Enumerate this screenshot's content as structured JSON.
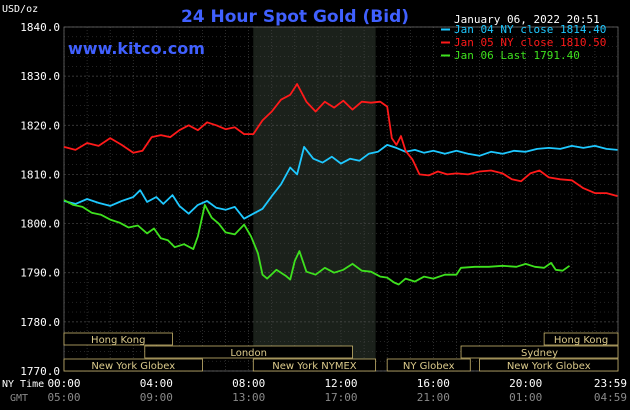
{
  "chart_data": {
    "type": "line",
    "title": "24 Hour Spot Gold (Bid)",
    "website": "www.kitco.com",
    "timestamp": "January 06, 2022 20:51",
    "y_unit_label": "USD/oz",
    "ylim": [
      1770,
      1840
    ],
    "y_ticks": [
      "1840.0",
      "1830.0",
      "1820.0",
      "1810.0",
      "1800.0",
      "1790.0",
      "1780.0",
      "1770.0"
    ],
    "y_tick_values": [
      1840,
      1830,
      1820,
      1810,
      1800,
      1790,
      1780,
      1770
    ],
    "xlim": [
      0,
      24
    ],
    "x_tick_hours": [
      0,
      4,
      8,
      12,
      16,
      20,
      23.98
    ],
    "x_label_nytime": "NY Time",
    "x_label_gmt": "GMT",
    "x_ticks_nytime": [
      "00:00",
      "04:00",
      "08:00",
      "12:00",
      "16:00",
      "20:00",
      "23:59"
    ],
    "x_ticks_gmt": [
      "05:00",
      "09:00",
      "13:00",
      "17:00",
      "21:00",
      "01:00",
      "04:59"
    ],
    "shaded_region_hours": [
      8.2,
      13.5
    ],
    "grid": true,
    "legend_position": "top-right",
    "series": [
      {
        "name": "Jan 04 NY close 1814.40",
        "color": "#1ec8ff",
        "points": [
          [
            0,
            1804.6
          ],
          [
            0.5,
            1804.0
          ],
          [
            1.0,
            1805.0
          ],
          [
            1.5,
            1804.2
          ],
          [
            2.0,
            1803.6
          ],
          [
            2.5,
            1804.6
          ],
          [
            3.0,
            1805.4
          ],
          [
            3.3,
            1806.8
          ],
          [
            3.6,
            1804.4
          ],
          [
            4.0,
            1805.4
          ],
          [
            4.3,
            1804.0
          ],
          [
            4.7,
            1805.8
          ],
          [
            5.0,
            1803.6
          ],
          [
            5.4,
            1802.0
          ],
          [
            5.8,
            1803.8
          ],
          [
            6.2,
            1804.6
          ],
          [
            6.6,
            1803.2
          ],
          [
            7.0,
            1802.8
          ],
          [
            7.4,
            1803.4
          ],
          [
            7.8,
            1801.0
          ],
          [
            8.2,
            1802.0
          ],
          [
            8.6,
            1803.0
          ],
          [
            9.0,
            1805.6
          ],
          [
            9.4,
            1808.0
          ],
          [
            9.8,
            1811.4
          ],
          [
            10.1,
            1810.0
          ],
          [
            10.4,
            1815.6
          ],
          [
            10.8,
            1813.2
          ],
          [
            11.2,
            1812.4
          ],
          [
            11.6,
            1813.6
          ],
          [
            12.0,
            1812.2
          ],
          [
            12.4,
            1813.2
          ],
          [
            12.8,
            1812.8
          ],
          [
            13.2,
            1814.2
          ],
          [
            13.6,
            1814.6
          ],
          [
            14.0,
            1816.0
          ],
          [
            14.4,
            1815.4
          ],
          [
            14.8,
            1814.6
          ],
          [
            15.2,
            1815.0
          ],
          [
            15.6,
            1814.4
          ],
          [
            16.0,
            1814.8
          ],
          [
            16.5,
            1814.2
          ],
          [
            17.0,
            1814.8
          ],
          [
            17.5,
            1814.2
          ],
          [
            18.0,
            1813.8
          ],
          [
            18.5,
            1814.6
          ],
          [
            19.0,
            1814.2
          ],
          [
            19.5,
            1814.8
          ],
          [
            20.0,
            1814.6
          ],
          [
            20.5,
            1815.2
          ],
          [
            21.0,
            1815.4
          ],
          [
            21.5,
            1815.2
          ],
          [
            22.0,
            1815.8
          ],
          [
            22.5,
            1815.4
          ],
          [
            23.0,
            1815.8
          ],
          [
            23.5,
            1815.2
          ],
          [
            23.98,
            1815.0
          ]
        ]
      },
      {
        "name": "Jan 05 NY close 1810.50",
        "color": "#ff1a1a",
        "points": [
          [
            0,
            1815.6
          ],
          [
            0.5,
            1815.0
          ],
          [
            1.0,
            1816.4
          ],
          [
            1.5,
            1815.8
          ],
          [
            2.0,
            1817.4
          ],
          [
            2.5,
            1816.0
          ],
          [
            3.0,
            1814.4
          ],
          [
            3.4,
            1814.8
          ],
          [
            3.8,
            1817.6
          ],
          [
            4.2,
            1818.0
          ],
          [
            4.6,
            1817.6
          ],
          [
            5.0,
            1819.0
          ],
          [
            5.4,
            1820.0
          ],
          [
            5.8,
            1819.0
          ],
          [
            6.2,
            1820.6
          ],
          [
            6.6,
            1820.0
          ],
          [
            7.0,
            1819.2
          ],
          [
            7.4,
            1819.6
          ],
          [
            7.8,
            1818.2
          ],
          [
            8.2,
            1818.2
          ],
          [
            8.6,
            1821.0
          ],
          [
            9.0,
            1822.8
          ],
          [
            9.4,
            1825.2
          ],
          [
            9.8,
            1826.2
          ],
          [
            10.1,
            1828.4
          ],
          [
            10.5,
            1824.8
          ],
          [
            10.9,
            1822.8
          ],
          [
            11.3,
            1824.8
          ],
          [
            11.7,
            1823.6
          ],
          [
            12.1,
            1825.0
          ],
          [
            12.5,
            1823.2
          ],
          [
            12.9,
            1824.8
          ],
          [
            13.3,
            1824.6
          ],
          [
            13.7,
            1824.8
          ],
          [
            14.0,
            1823.8
          ],
          [
            14.2,
            1817.4
          ],
          [
            14.4,
            1816.0
          ],
          [
            14.6,
            1817.8
          ],
          [
            14.8,
            1814.8
          ],
          [
            15.1,
            1813.0
          ],
          [
            15.4,
            1810.0
          ],
          [
            15.8,
            1809.8
          ],
          [
            16.2,
            1810.6
          ],
          [
            16.6,
            1810.0
          ],
          [
            17.0,
            1810.2
          ],
          [
            17.5,
            1810.0
          ],
          [
            18.0,
            1810.6
          ],
          [
            18.5,
            1810.8
          ],
          [
            19.0,
            1810.2
          ],
          [
            19.4,
            1809.0
          ],
          [
            19.8,
            1808.6
          ],
          [
            20.2,
            1810.2
          ],
          [
            20.6,
            1810.8
          ],
          [
            21.0,
            1809.4
          ],
          [
            21.5,
            1809.0
          ],
          [
            22.0,
            1808.8
          ],
          [
            22.5,
            1807.2
          ],
          [
            23.0,
            1806.2
          ],
          [
            23.5,
            1806.2
          ],
          [
            23.98,
            1805.6
          ]
        ]
      },
      {
        "name": "Jan 06 Last 1791.40",
        "color": "#3ee11e",
        "points": [
          [
            0,
            1804.8
          ],
          [
            0.4,
            1803.8
          ],
          [
            0.8,
            1803.4
          ],
          [
            1.2,
            1802.2
          ],
          [
            1.6,
            1801.8
          ],
          [
            2.0,
            1800.8
          ],
          [
            2.4,
            1800.2
          ],
          [
            2.8,
            1799.2
          ],
          [
            3.2,
            1799.6
          ],
          [
            3.6,
            1798.0
          ],
          [
            3.9,
            1799.0
          ],
          [
            4.2,
            1797.0
          ],
          [
            4.5,
            1796.6
          ],
          [
            4.8,
            1795.2
          ],
          [
            5.2,
            1795.8
          ],
          [
            5.6,
            1794.8
          ],
          [
            5.8,
            1797.4
          ],
          [
            6.1,
            1803.8
          ],
          [
            6.4,
            1801.2
          ],
          [
            6.7,
            1800.0
          ],
          [
            7.0,
            1798.2
          ],
          [
            7.4,
            1797.8
          ],
          [
            7.8,
            1799.8
          ],
          [
            8.1,
            1797.4
          ],
          [
            8.4,
            1794.0
          ],
          [
            8.6,
            1789.6
          ],
          [
            8.8,
            1788.8
          ],
          [
            9.2,
            1790.6
          ],
          [
            9.6,
            1789.4
          ],
          [
            9.8,
            1788.6
          ],
          [
            10.0,
            1792.4
          ],
          [
            10.2,
            1794.4
          ],
          [
            10.5,
            1790.2
          ],
          [
            10.9,
            1789.6
          ],
          [
            11.3,
            1791.0
          ],
          [
            11.7,
            1790.0
          ],
          [
            12.1,
            1790.6
          ],
          [
            12.5,
            1791.8
          ],
          [
            12.9,
            1790.4
          ],
          [
            13.3,
            1790.2
          ],
          [
            13.7,
            1789.2
          ],
          [
            14.0,
            1789.0
          ],
          [
            14.3,
            1788.0
          ],
          [
            14.5,
            1787.6
          ],
          [
            14.8,
            1788.8
          ],
          [
            15.2,
            1788.2
          ],
          [
            15.6,
            1789.2
          ],
          [
            16.0,
            1788.8
          ],
          [
            16.5,
            1789.6
          ],
          [
            17.0,
            1789.6
          ],
          [
            17.2,
            1791.0
          ],
          [
            17.8,
            1791.2
          ],
          [
            18.4,
            1791.2
          ],
          [
            19.0,
            1791.4
          ],
          [
            19.6,
            1791.2
          ],
          [
            20.0,
            1791.8
          ],
          [
            20.4,
            1791.2
          ],
          [
            20.8,
            1791.0
          ],
          [
            21.1,
            1792.0
          ],
          [
            21.3,
            1790.6
          ],
          [
            21.6,
            1790.4
          ],
          [
            21.9,
            1791.4
          ]
        ]
      }
    ],
    "market_bars": [
      {
        "label": "Hong Kong",
        "start": 0.0,
        "end": 4.7,
        "row": 0
      },
      {
        "label": "Hong Kong",
        "start": 20.8,
        "end": 24.0,
        "row": 0
      },
      {
        "label": "London",
        "start": 3.5,
        "end": 12.5,
        "row": 1
      },
      {
        "label": "Sydney",
        "start": 17.2,
        "end": 24.0,
        "row": 1
      },
      {
        "label": "New York Globex",
        "start": 0.0,
        "end": 6.0,
        "row": 2
      },
      {
        "label": "New York NYMEX",
        "start": 8.2,
        "end": 13.5,
        "row": 2
      },
      {
        "label": "NY Globex",
        "start": 14.0,
        "end": 17.6,
        "row": 2
      },
      {
        "label": "New York Globex",
        "start": 18.0,
        "end": 24.0,
        "row": 2
      }
    ],
    "colors": {
      "background": "#000000",
      "title": "#4060ff",
      "website": "#4060ff",
      "grid": "#4a4a4a",
      "shade": "#1b211b",
      "market_bar_fill": "#000000",
      "market_bar_border": "#c8b46e",
      "market_bar_text": "#dccb8c",
      "axis_text": "#ffffff",
      "gmt_text": "#8a8a8a"
    }
  }
}
